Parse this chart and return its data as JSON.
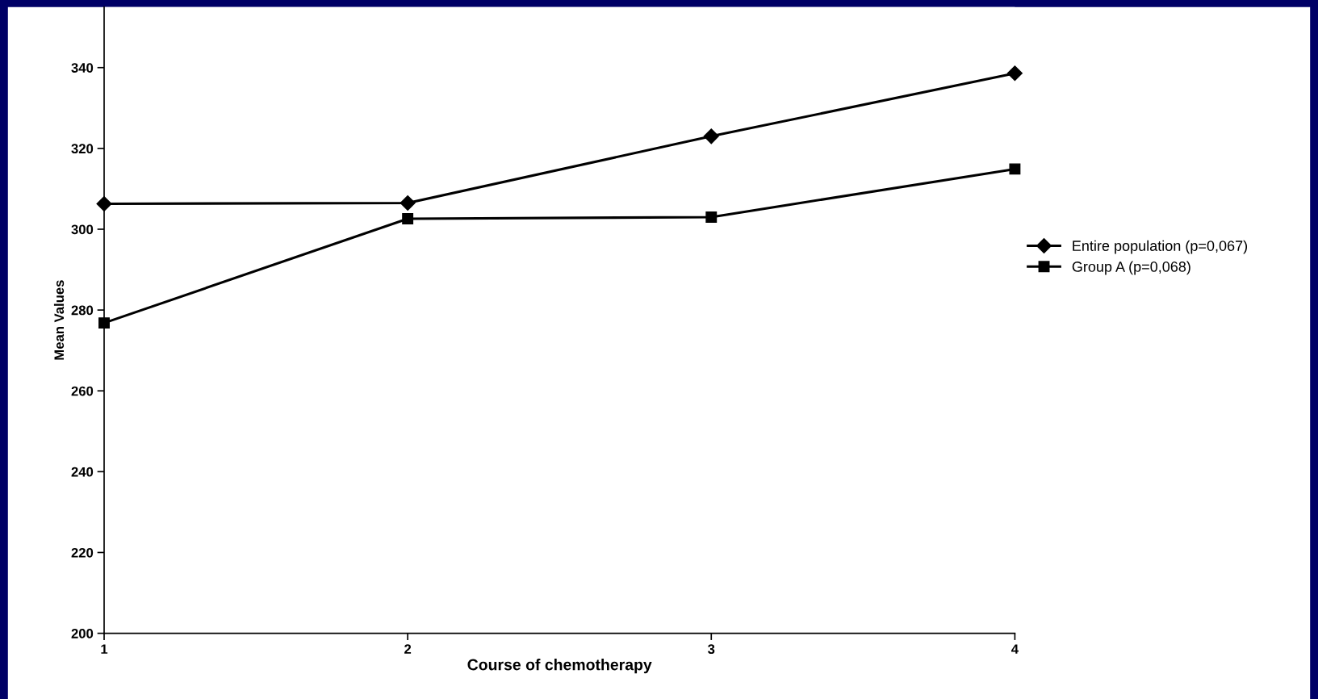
{
  "chart_data": {
    "type": "line",
    "xlabel": "Course of chemotherapy",
    "ylabel": "Mean Values",
    "x": [
      1,
      2,
      3,
      4
    ],
    "xlim": [
      1,
      4
    ],
    "xticks": [
      1,
      2,
      3,
      4
    ],
    "ylim": [
      200,
      355
    ],
    "yticks": [
      200,
      220,
      240,
      260,
      280,
      300,
      320,
      340
    ],
    "grid": false,
    "legend": "right",
    "line_style": "solid",
    "series": [
      {
        "name": "Entire population (p=0,067)",
        "color": "#000000",
        "marker": "diamond",
        "values": [
          306.3,
          306.5,
          323.0,
          338.6
        ]
      },
      {
        "name": "Group A (p=0,068)",
        "color": "#000000",
        "marker": "square",
        "values": [
          276.8,
          302.6,
          303.0,
          314.9
        ]
      }
    ]
  }
}
